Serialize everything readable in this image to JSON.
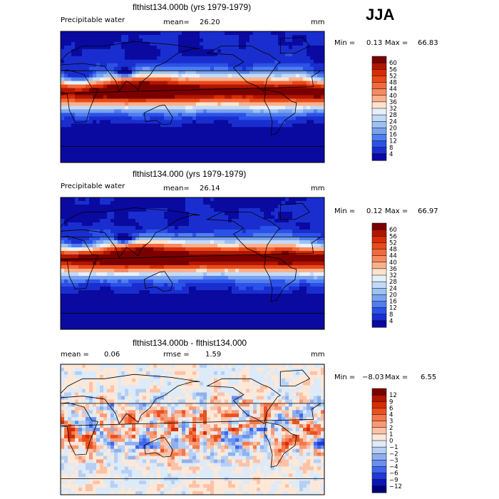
{
  "season": "JJA",
  "panels": [
    {
      "title": "flthist134.000b (yrs 1979-1979)",
      "variable": "Precipitable water",
      "stat1_label": "mean=",
      "stat1_value": "26.20",
      "stat2_label": "",
      "stat2_value": "",
      "units": "mm",
      "min_label": "Min =",
      "min_value": "0.13",
      "max_label": "Max =",
      "max_value": "66.83"
    },
    {
      "title": "flthist134.000 (yrs 1979-1979)",
      "variable": "Precipitable water",
      "stat1_label": "mean=",
      "stat1_value": "26.14",
      "stat2_label": "",
      "stat2_value": "",
      "units": "mm",
      "min_label": "Min =",
      "min_value": "0.12",
      "max_label": "Max =",
      "max_value": "66.97"
    },
    {
      "title": "flthist134.000b - flthist134.000",
      "variable": "",
      "stat1_label": "mean =",
      "stat1_value": "0.06",
      "stat2_label": "rmse =",
      "stat2_value": "1.59",
      "units": "mm",
      "min_label": "Min =",
      "min_value": "−8.03",
      "max_label": "Max =",
      "max_value": "6.55"
    }
  ],
  "chart_data": [
    {
      "type": "heatmap",
      "title": "flthist134.000b (yrs 1979-1979)",
      "field": "Precipitable water",
      "units": "mm",
      "mean": 26.2,
      "min": 0.13,
      "max": 66.83,
      "colorbar_levels": [
        "60",
        "56",
        "52",
        "48",
        "44",
        "40",
        "36",
        "32",
        "28",
        "24",
        "20",
        "16",
        "12",
        "8",
        "4"
      ],
      "colors": [
        "#7a0000",
        "#b01600",
        "#d92c00",
        "#e84a1a",
        "#f26a3c",
        "#f78a60",
        "#fbb08c",
        "#fde3cc",
        "#e6f0fa",
        "#c3daf6",
        "#9cc1f2",
        "#7aa2ee",
        "#4f7ef0",
        "#2b52e8",
        "#1a2ecf",
        "#0a0aa0"
      ],
      "xlabel": "",
      "ylabel": ""
    },
    {
      "type": "heatmap",
      "title": "flthist134.000 (yrs 1979-1979)",
      "field": "Precipitable water",
      "units": "mm",
      "mean": 26.14,
      "min": 0.12,
      "max": 66.97,
      "colorbar_levels": [
        "60",
        "56",
        "52",
        "48",
        "44",
        "40",
        "36",
        "32",
        "28",
        "24",
        "20",
        "16",
        "12",
        "8",
        "4"
      ],
      "colors": [
        "#7a0000",
        "#b01600",
        "#d92c00",
        "#e84a1a",
        "#f26a3c",
        "#f78a60",
        "#fbb08c",
        "#fde3cc",
        "#e6f0fa",
        "#c3daf6",
        "#9cc1f2",
        "#7aa2ee",
        "#4f7ef0",
        "#2b52e8",
        "#1a2ecf",
        "#0a0aa0"
      ],
      "xlabel": "",
      "ylabel": ""
    },
    {
      "type": "heatmap",
      "title": "flthist134.000b - flthist134.000",
      "field": "",
      "units": "mm",
      "mean": 0.06,
      "rmse": 1.59,
      "min": -8.03,
      "max": 6.55,
      "colorbar_levels": [
        "12",
        "9",
        "6",
        "4",
        "3",
        "2",
        "1",
        "0",
        "−1",
        "−2",
        "−3",
        "−4",
        "−6",
        "−9",
        "−12"
      ],
      "colors": [
        "#7a0000",
        "#b01600",
        "#d92c00",
        "#ea5020",
        "#f2784c",
        "#f89a78",
        "#fcc2a6",
        "#fde8d8",
        "#ddeaf8",
        "#b6cff3",
        "#8eb0ee",
        "#6a8ff0",
        "#3f65ec",
        "#2238d8",
        "#0d16b0",
        "#00007a"
      ],
      "xlabel": "",
      "ylabel": ""
    }
  ]
}
